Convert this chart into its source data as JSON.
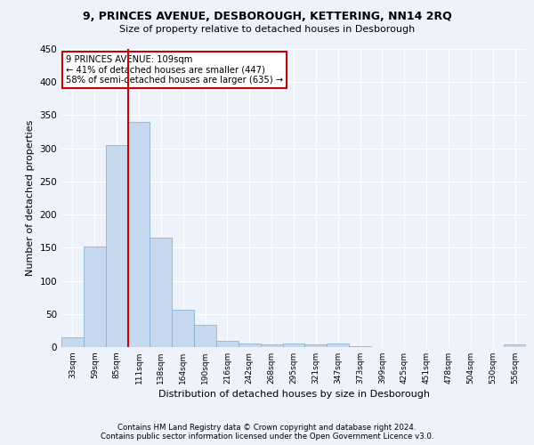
{
  "title1": "9, PRINCES AVENUE, DESBOROUGH, KETTERING, NN14 2RQ",
  "title2": "Size of property relative to detached houses in Desborough",
  "xlabel": "Distribution of detached houses by size in Desborough",
  "ylabel": "Number of detached properties",
  "footnote1": "Contains HM Land Registry data © Crown copyright and database right 2024.",
  "footnote2": "Contains public sector information licensed under the Open Government Licence v3.0.",
  "annotation_line1": "9 PRINCES AVENUE: 109sqm",
  "annotation_line2": "← 41% of detached houses are smaller (447)",
  "annotation_line3": "58% of semi-detached houses are larger (635) →",
  "bar_color": "#c5d8ee",
  "bar_edge_color": "#7aadd4",
  "vline_color": "#cc0000",
  "vline_x": 2.5,
  "categories": [
    "33sqm",
    "59sqm",
    "85sqm",
    "111sqm",
    "138sqm",
    "164sqm",
    "190sqm",
    "216sqm",
    "242sqm",
    "268sqm",
    "295sqm",
    "321sqm",
    "347sqm",
    "373sqm",
    "399sqm",
    "425sqm",
    "451sqm",
    "478sqm",
    "504sqm",
    "530sqm",
    "556sqm"
  ],
  "values": [
    15,
    152,
    305,
    340,
    165,
    57,
    33,
    9,
    6,
    4,
    5,
    4,
    5,
    1,
    0,
    0,
    0,
    0,
    0,
    0,
    4
  ],
  "ylim": [
    0,
    450
  ],
  "yticks": [
    0,
    50,
    100,
    150,
    200,
    250,
    300,
    350,
    400,
    450
  ],
  "background_color": "#eef2fb",
  "grid_color": "#ffffff",
  "annotation_box_color": "#ffffff",
  "annotation_box_edge": "#cc0000"
}
